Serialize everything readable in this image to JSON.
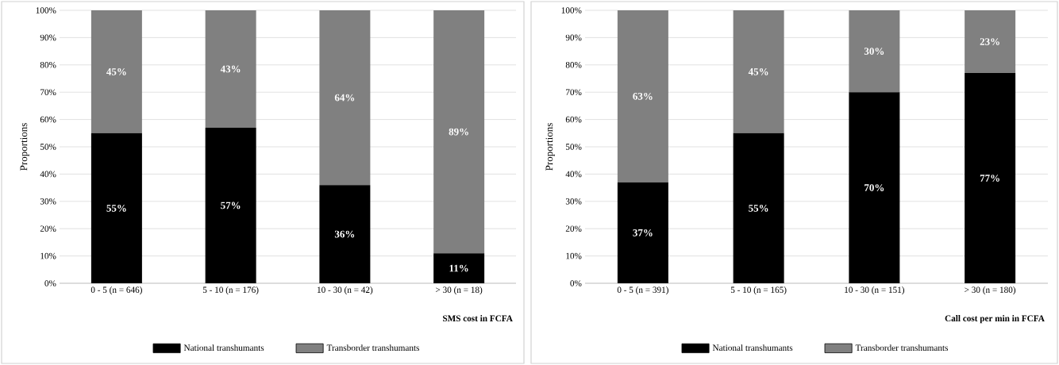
{
  "chart_data": [
    {
      "type": "bar",
      "stacked": true,
      "categories": [
        "0 - 5 (n = 646)",
        "5 - 10  (n = 176)",
        "10 - 30 (n =  42)",
        "> 30  (n = 18)"
      ],
      "xlabel": "SMS cost in  FCFA",
      "ylabel": "Proportions",
      "ylim": [
        0,
        100
      ],
      "yticks": [
        {
          "value": 0,
          "label": "0%"
        },
        {
          "value": 10,
          "label": "10%"
        },
        {
          "value": 20,
          "label": "20%"
        },
        {
          "value": 30,
          "label": "30%"
        },
        {
          "value": 40,
          "label": "40%"
        },
        {
          "value": 50,
          "label": "50%"
        },
        {
          "value": 60,
          "label": "60%"
        },
        {
          "value": 70,
          "label": "70%"
        },
        {
          "value": 80,
          "label": "80%"
        },
        {
          "value": 90,
          "label": "90%"
        },
        {
          "value": 100,
          "label": "100%"
        }
      ],
      "grid": "y",
      "legend": "bottom",
      "series": [
        {
          "name": "National transhumants",
          "color": "#000000",
          "values": [
            55,
            57,
            36,
            11
          ],
          "value_labels": [
            "55%",
            "57%",
            "36%",
            "11%"
          ]
        },
        {
          "name": "Transborder transhumants",
          "color": "#808080",
          "values": [
            45,
            43,
            64,
            89
          ],
          "value_labels": [
            "45%",
            "43%",
            "64%",
            "89%"
          ]
        }
      ]
    },
    {
      "type": "bar",
      "stacked": true,
      "categories": [
        "0 - 5    (n = 391)",
        "5 - 10 (n = 165)",
        "10 - 30   (n = 151)",
        "> 30 (n = 180)"
      ],
      "xlabel": "Call cost per min  in FCFA",
      "ylabel": "Proportions",
      "ylim": [
        0,
        100
      ],
      "yticks": [
        {
          "value": 0,
          "label": "0%"
        },
        {
          "value": 10,
          "label": "10%"
        },
        {
          "value": 20,
          "label": "20%"
        },
        {
          "value": 30,
          "label": "30%"
        },
        {
          "value": 40,
          "label": "40%"
        },
        {
          "value": 50,
          "label": "50%"
        },
        {
          "value": 60,
          "label": "60%"
        },
        {
          "value": 70,
          "label": "70%"
        },
        {
          "value": 80,
          "label": "80%"
        },
        {
          "value": 90,
          "label": "90%"
        },
        {
          "value": 100,
          "label": "100%"
        }
      ],
      "grid": "y",
      "legend": "bottom",
      "series": [
        {
          "name": "National transhumants",
          "color": "#000000",
          "values": [
            37,
            55,
            70,
            77
          ],
          "value_labels": [
            "37%",
            "55%",
            "70%",
            "77%"
          ]
        },
        {
          "name": "Transborder transhumants",
          "color": "#808080",
          "values": [
            63,
            45,
            30,
            23
          ],
          "value_labels": [
            "63%",
            "45%",
            "30%",
            "23%"
          ]
        }
      ]
    }
  ]
}
